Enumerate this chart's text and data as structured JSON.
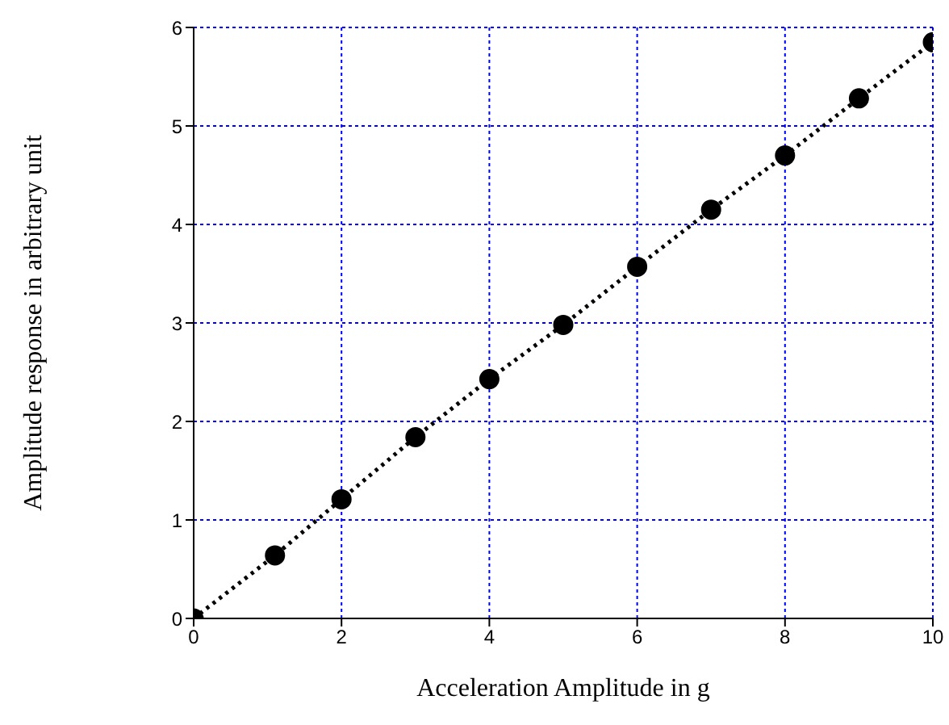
{
  "chart_data": {
    "type": "line",
    "xlabel": "Acceleration Amplitude in g",
    "ylabel": "Amplitude response in arbitrary unit",
    "x": [
      0,
      1.1,
      2,
      3,
      4,
      5,
      6,
      7,
      8,
      9,
      10
    ],
    "series": [
      {
        "color": "#000000",
        "values": [
          0,
          0.64,
          1.21,
          1.84,
          2.43,
          2.98,
          3.57,
          4.15,
          4.7,
          5.28,
          5.85
        ]
      }
    ],
    "xlim": [
      0,
      10
    ],
    "xticks": [
      0,
      2,
      4,
      6,
      8,
      10
    ],
    "ylim": [
      0,
      6
    ],
    "yticks": [
      0,
      1,
      2,
      3,
      4,
      5,
      6
    ],
    "grid": true,
    "marker": "circle",
    "line_style": "dotted"
  }
}
